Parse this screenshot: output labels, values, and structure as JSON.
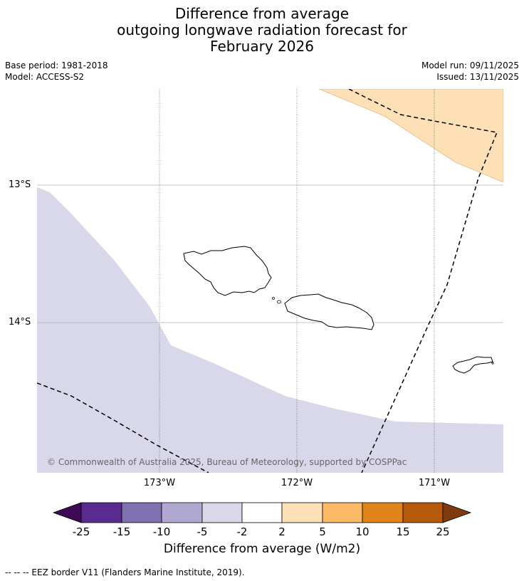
{
  "title": {
    "line1": "Difference from average",
    "line2": "outgoing longwave radiation forecast for",
    "line3": "February 2026"
  },
  "meta": {
    "base_period": "Base period: 1981-2018",
    "model": "Model: ACCESS-S2",
    "model_run": "Model run: 09/11/2025",
    "issued": "Issued: 13/11/2025"
  },
  "map": {
    "lat_labels": [
      "13°S",
      "14°S"
    ],
    "lon_labels": [
      "173°W",
      "172°W",
      "171°W"
    ],
    "copyright": "© Commonwealth of Australia 2025, Bureau of Meteorology, supported by COSPPac",
    "regions": [
      {
        "name": "positive-anomaly-area",
        "category": "2 to 5",
        "color": "#fde0b6"
      },
      {
        "name": "negative-anomaly-area",
        "category": "-5 to -2",
        "color": "#d8d8ea"
      }
    ]
  },
  "colorbar": {
    "title": "Difference from average (W/m2)",
    "ticks": [
      "-25",
      "-15",
      "-10",
      "-5",
      "-2",
      "2",
      "5",
      "10",
      "15",
      "25"
    ],
    "colors": [
      "#3f0a54",
      "#5b2a8f",
      "#8170b0",
      "#b1a8d1",
      "#d8d8ea",
      "#ffffff",
      "#fde0b6",
      "#fcb966",
      "#e08419",
      "#b55a0a",
      "#7f3b0b"
    ]
  },
  "footer": {
    "legend": "--  --  -- EEZ border V11 (Flanders Marine Institute, 2019)."
  }
}
